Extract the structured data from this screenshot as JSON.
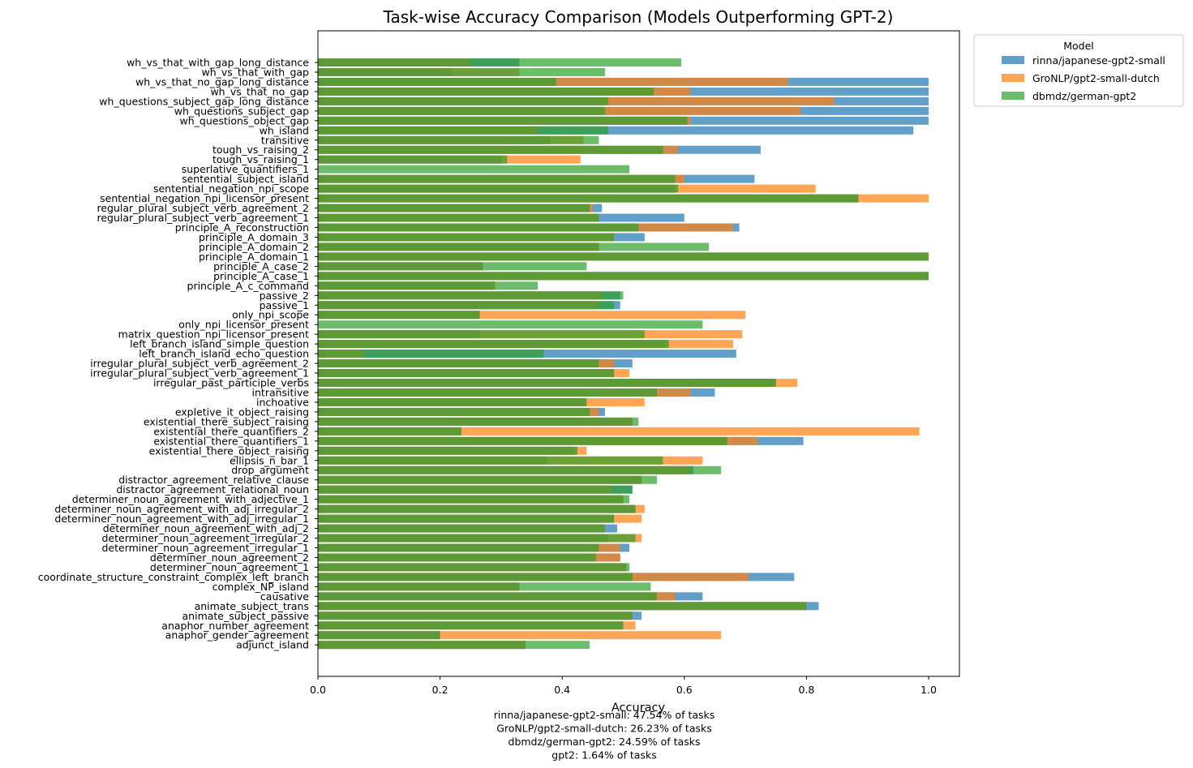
{
  "chart_data": {
    "type": "bar",
    "orientation": "horizontal",
    "title": "Task-wise Accuracy Comparison (Models Outperforming GPT-2)",
    "xlabel": "Accuracy",
    "ylabel": "",
    "xlim": [
      0.0,
      1.05
    ],
    "xticks": [
      "0.0",
      "0.2",
      "0.4",
      "0.6",
      "0.8",
      "1.0"
    ],
    "legend": {
      "title": "Model",
      "placement": "outside-top-right"
    },
    "categories": [
      "wh_vs_that_with_gap_long_distance",
      "wh_vs_that_with_gap",
      "wh_vs_that_no_gap_long_distance",
      "wh_vs_that_no_gap",
      "wh_questions_subject_gap_long_distance",
      "wh_questions_subject_gap",
      "wh_questions_object_gap",
      "wh_island",
      "transitive",
      "tough_vs_raising_2",
      "tough_vs_raising_1",
      "superlative_quantifiers_1",
      "sentential_subject_island",
      "sentential_negation_npi_scope",
      "sentential_negation_npi_licensor_present",
      "regular_plural_subject_verb_agreement_2",
      "regular_plural_subject_verb_agreement_1",
      "principle_A_reconstruction",
      "principle_A_domain_3",
      "principle_A_domain_2",
      "principle_A_domain_1",
      "principle_A_case_2",
      "principle_A_case_1",
      "principle_A_c_command",
      "passive_2",
      "passive_1",
      "only_npi_scope",
      "only_npi_licensor_present",
      "matrix_question_npi_licensor_present",
      "left_branch_island_simple_question",
      "left_branch_island_echo_question",
      "irregular_plural_subject_verb_agreement_2",
      "irregular_plural_subject_verb_agreement_1",
      "irregular_past_participle_verbs",
      "intransitive",
      "inchoative",
      "expletive_it_object_raising",
      "existential_there_subject_raising",
      "existential_there_quantifiers_2",
      "existential_there_quantifiers_1",
      "existential_there_object_raising",
      "ellipsis_n_bar_1",
      "drop_argument",
      "distractor_agreement_relative_clause",
      "distractor_agreement_relational_noun",
      "determiner_noun_agreement_with_adjective_1",
      "determiner_noun_agreement_with_adj_irregular_2",
      "determiner_noun_agreement_with_adj_irregular_1",
      "determiner_noun_agreement_with_adj_2",
      "determiner_noun_agreement_irregular_2",
      "determiner_noun_agreement_irregular_1",
      "determiner_noun_agreement_2",
      "determiner_noun_agreement_1",
      "coordinate_structure_constraint_complex_left_branch",
      "complex_NP_island",
      "causative",
      "animate_subject_trans",
      "animate_subject_passive",
      "anaphor_number_agreement",
      "anaphor_gender_agreement",
      "adjunct_island"
    ],
    "series": [
      {
        "name": "rinna/japanese-gpt2-small",
        "color": "#1f77b4",
        "values": [
          0.33,
          0.22,
          1.0,
          1.0,
          1.0,
          1.0,
          1.0,
          0.975,
          0.38,
          0.725,
          0.3,
          0.0,
          0.715,
          0.585,
          0.885,
          0.465,
          0.6,
          0.69,
          0.535,
          0.46,
          1.0,
          0.27,
          1.0,
          0.29,
          0.495,
          0.495,
          0.265,
          0.0,
          0.265,
          0.57,
          0.685,
          0.515,
          0.485,
          0.75,
          0.65,
          0.44,
          0.47,
          0.515,
          0.235,
          0.795,
          0.42,
          0.375,
          0.615,
          0.53,
          0.515,
          0.5,
          0.52,
          0.485,
          0.49,
          0.475,
          0.51,
          0.495,
          0.505,
          0.78,
          0.33,
          0.63,
          0.82,
          0.53,
          0.5,
          0.2,
          0.34
        ]
      },
      {
        "name": "GroNLP/gpt2-small-dutch",
        "color": "#ff7f0e",
        "values": [
          0.25,
          0.33,
          0.77,
          0.61,
          0.845,
          0.79,
          0.61,
          0.36,
          0.435,
          0.59,
          0.43,
          0.0,
          0.6,
          0.815,
          1.0,
          0.45,
          0.46,
          0.68,
          0.485,
          0.46,
          1.0,
          0.27,
          1.0,
          0.29,
          0.465,
          0.46,
          0.7,
          0.0,
          0.695,
          0.68,
          0.075,
          0.485,
          0.51,
          0.785,
          0.61,
          0.535,
          0.46,
          0.515,
          0.985,
          0.72,
          0.44,
          0.63,
          0.61,
          0.53,
          0.48,
          0.5,
          0.535,
          0.53,
          0.47,
          0.53,
          0.495,
          0.495,
          0.505,
          0.705,
          0.33,
          0.585,
          0.8,
          0.515,
          0.52,
          0.66,
          0.34
        ]
      },
      {
        "name": "dbmdz/german-gpt2",
        "color": "#2ca02c",
        "values": [
          0.595,
          0.47,
          0.39,
          0.55,
          0.475,
          0.47,
          0.605,
          0.475,
          0.46,
          0.565,
          0.31,
          0.51,
          0.585,
          0.59,
          0.885,
          0.445,
          0.46,
          0.525,
          0.485,
          0.64,
          1.0,
          0.44,
          1.0,
          0.36,
          0.5,
          0.485,
          0.265,
          0.63,
          0.535,
          0.575,
          0.37,
          0.46,
          0.485,
          0.75,
          0.555,
          0.44,
          0.445,
          0.525,
          0.235,
          0.67,
          0.425,
          0.565,
          0.66,
          0.555,
          0.515,
          0.51,
          0.52,
          0.485,
          0.47,
          0.52,
          0.46,
          0.455,
          0.51,
          0.515,
          0.545,
          0.555,
          0.8,
          0.515,
          0.5,
          0.2,
          0.445
        ]
      }
    ],
    "footer": [
      "rinna/japanese-gpt2-small: 47.54% of tasks",
      "GroNLP/gpt2-small-dutch: 26.23% of tasks",
      "dbmdz/german-gpt2: 24.59% of tasks",
      "gpt2: 1.64% of tasks"
    ]
  }
}
